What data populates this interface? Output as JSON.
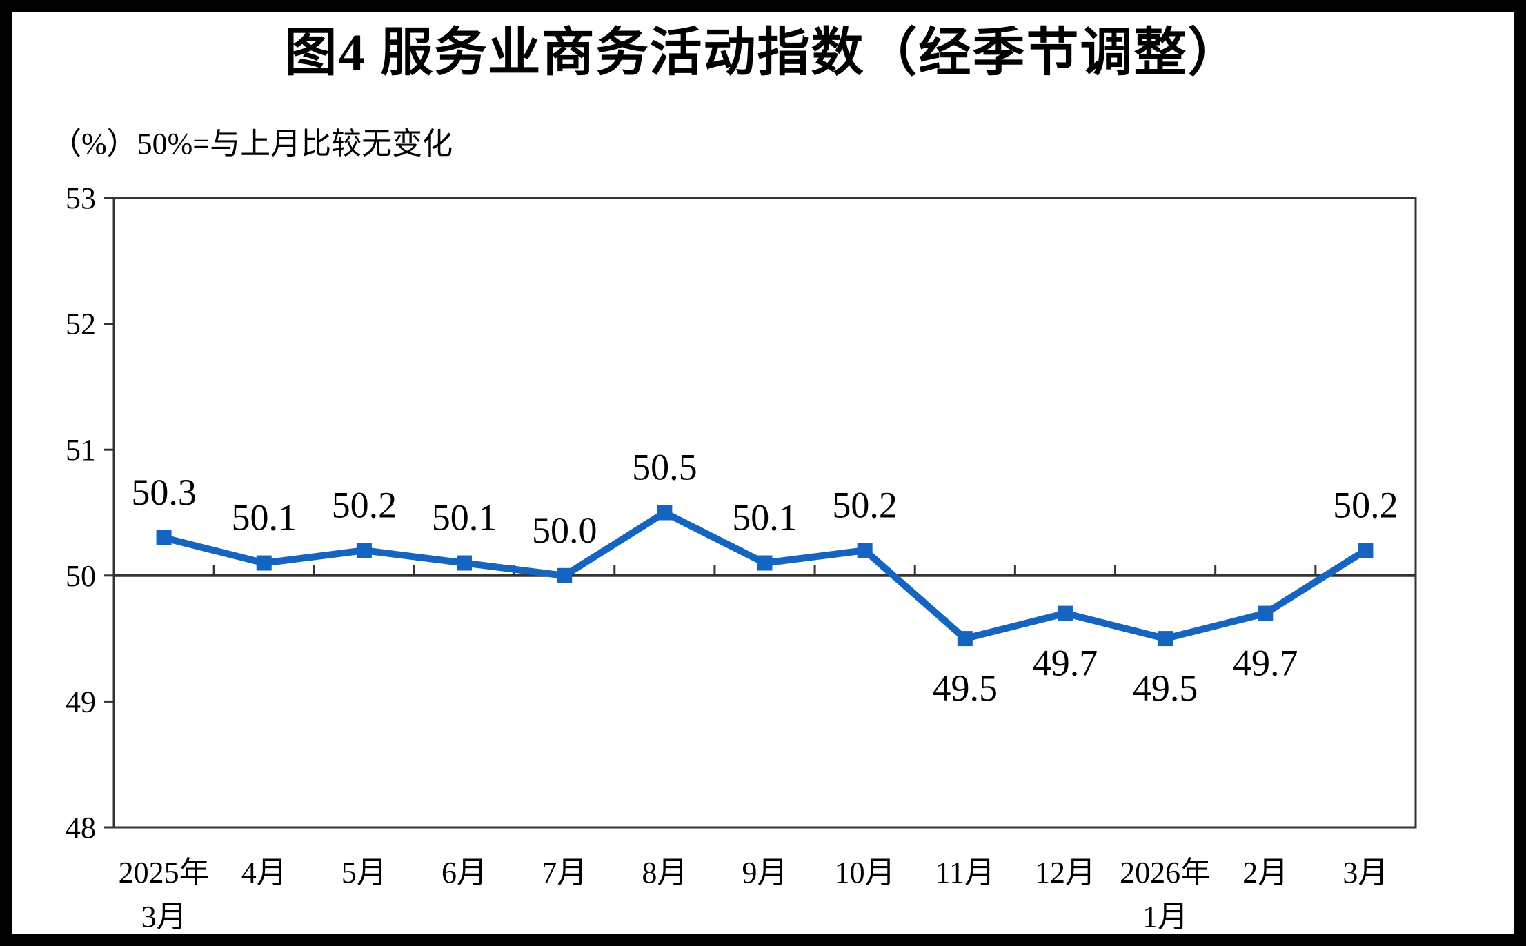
{
  "figure": {
    "title": "图4 服务业商务活动指数（经季节调整）",
    "unit_label": "（%）50%=与上月比较无变化"
  },
  "colors": {
    "line": "#1565C0",
    "axis": "#333333",
    "text": "#000000",
    "frame_border": "#000000",
    "background": "#FFFFFF"
  },
  "chart_data": {
    "type": "line",
    "title": "图4 服务业商务活动指数（经季节调整）",
    "ylabel_note": "（%）50%=与上月比较无变化",
    "categories": [
      "2025年\n3月",
      "4月",
      "5月",
      "6月",
      "7月",
      "8月",
      "9月",
      "10月",
      "11月",
      "12月",
      "2026年\n1月",
      "2月",
      "3月"
    ],
    "series": [
      {
        "name": "服务业商务活动指数（经季节调整）",
        "values": [
          50.3,
          50.1,
          50.2,
          50.1,
          50.0,
          50.5,
          50.1,
          50.2,
          49.5,
          49.7,
          49.5,
          49.7,
          50.2
        ]
      }
    ],
    "data_labels": [
      "50.3",
      "50.1",
      "50.2",
      "50.1",
      "50.0",
      "50.5",
      "50.1",
      "50.2",
      "49.5",
      "49.7",
      "49.5",
      "49.7",
      "50.2"
    ],
    "ylim": [
      48,
      53
    ],
    "yticks": [
      48,
      49,
      50,
      51,
      52,
      53
    ],
    "reference_line_y": 50,
    "grid": false,
    "legend_position": "none",
    "marker": "square",
    "label_rule": "above line if value >= 50, below if value < 50"
  }
}
